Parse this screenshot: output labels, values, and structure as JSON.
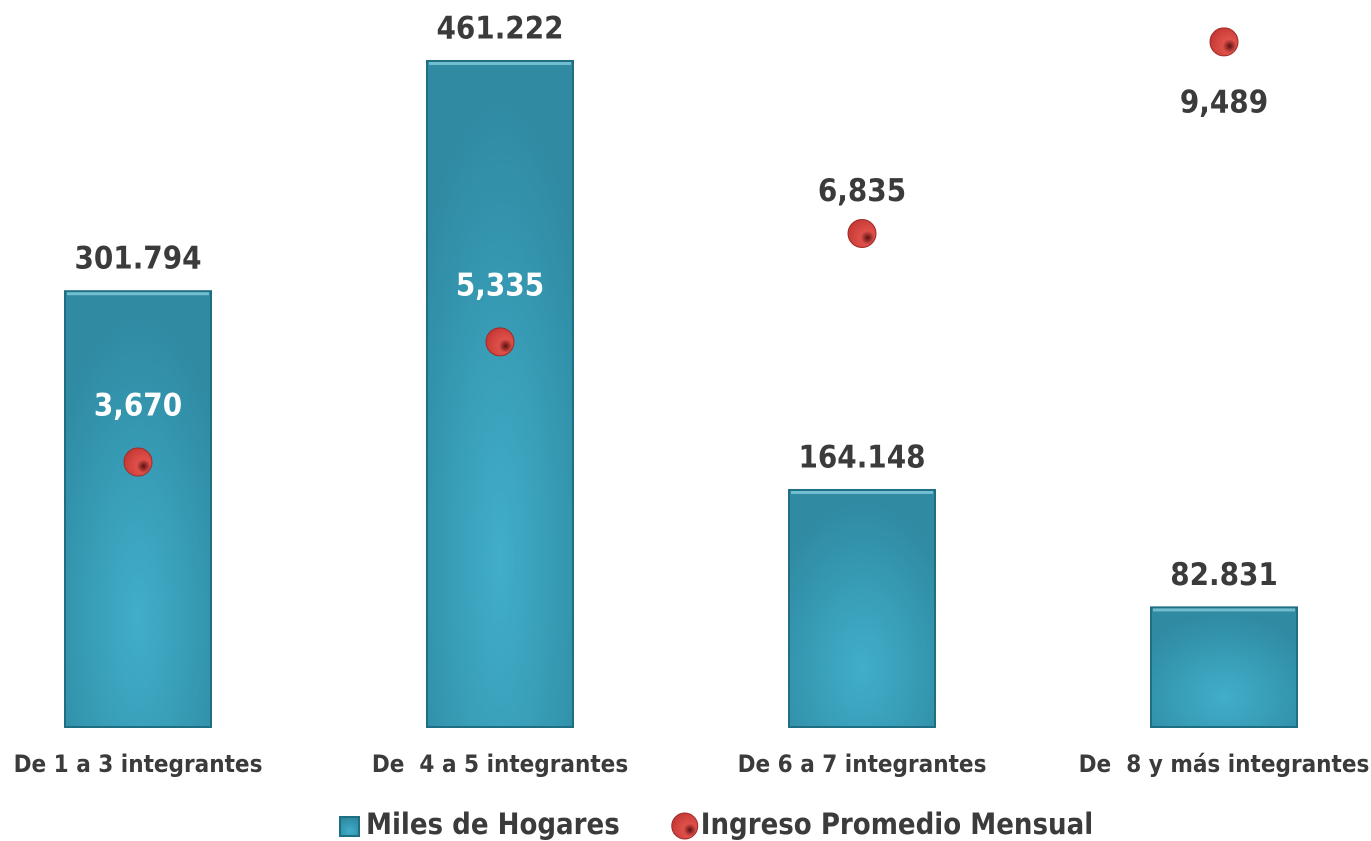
{
  "chart_data": {
    "type": "bar",
    "categories": [
      "De 1 a 3 integrantes",
      "De  4 a 5 integrantes",
      "De 6 a 7 integrantes",
      "De  8 y más integrantes"
    ],
    "series": [
      {
        "name": "Miles de Hogares",
        "type": "bar",
        "color": "#3aa3bd",
        "values": [
          301.794,
          461.222,
          164.148,
          82.831
        ]
      },
      {
        "name": "Ingreso Promedio Mensual",
        "type": "scatter",
        "axis": "y2",
        "color": "#d9443f",
        "values": [
          3670,
          5335,
          6835,
          9489
        ],
        "value_labels": [
          "3,670",
          "5,335",
          "6,835",
          "9,489"
        ]
      }
    ],
    "ylim": [
      0,
      500
    ],
    "y2lim": [
      0,
      10000
    ],
    "legend": "bottom"
  }
}
